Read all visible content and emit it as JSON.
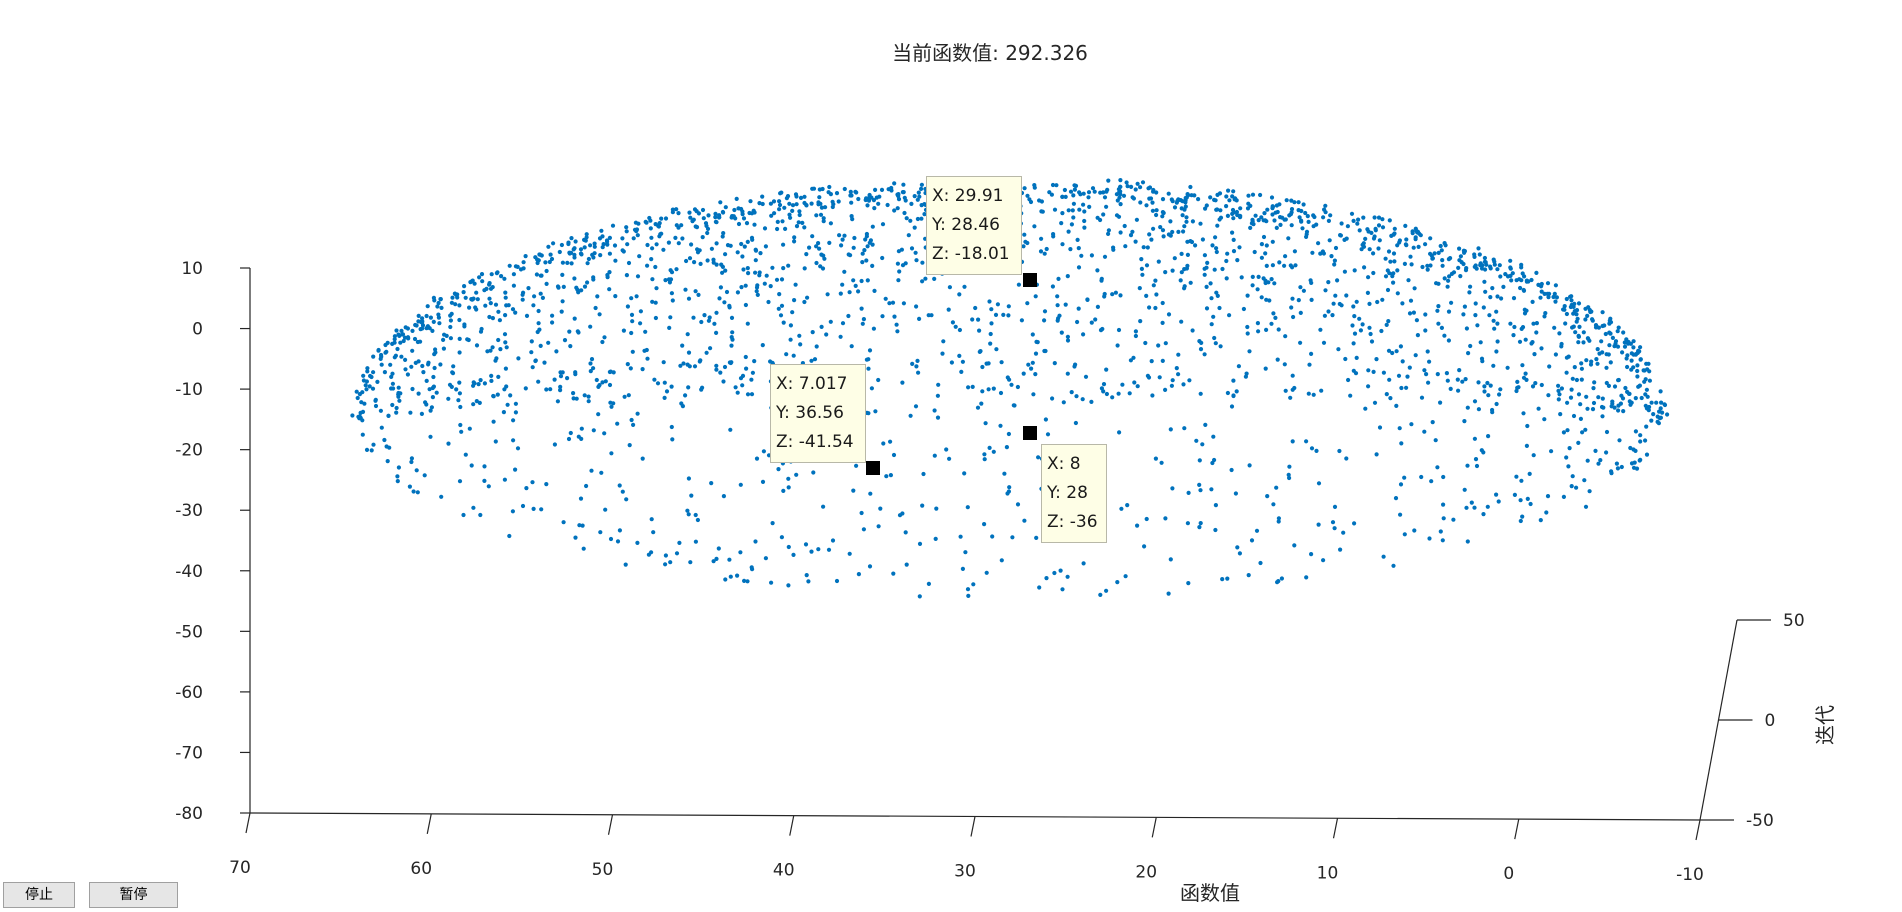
{
  "title": "当前函数值: 292.326",
  "xlabel": "函数值",
  "zlabel": "迭代",
  "buttons": {
    "stop": "停止",
    "pause": "暂停"
  },
  "chart_data": {
    "type": "scatter3d",
    "title": "当前函数值: 292.326",
    "xlabel": "函数值",
    "ylabel": "",
    "zlabel": "迭代",
    "x_ticks": [
      "70",
      "60",
      "50",
      "40",
      "30",
      "20",
      "10",
      "0",
      "-10"
    ],
    "y_ticks": [
      "10",
      "0",
      "-10",
      "-20",
      "-30",
      "-40",
      "-50",
      "-60",
      "-70",
      "-80"
    ],
    "z_ticks": [
      "50",
      "0",
      "-50"
    ],
    "xlim": [
      -10,
      70
    ],
    "ylim": [
      -80,
      10
    ],
    "zlim": [
      -50,
      50
    ],
    "marker_color": "#0072bd",
    "grid": false,
    "datatips": [
      {
        "x": "X: 29.91",
        "y": "Y: 28.46",
        "z": "Z: -18.01"
      },
      {
        "x": "X: 7.017",
        "y": "Y: 36.56",
        "z": "Z: -41.54"
      },
      {
        "x": "X: 8",
        "y": "Y: 28",
        "z": "Z: -36"
      }
    ],
    "sample_points": [
      [
        29.91,
        28.46,
        -18.01
      ],
      [
        7.017,
        36.56,
        -41.54
      ],
      [
        8,
        28,
        -36
      ]
    ]
  }
}
